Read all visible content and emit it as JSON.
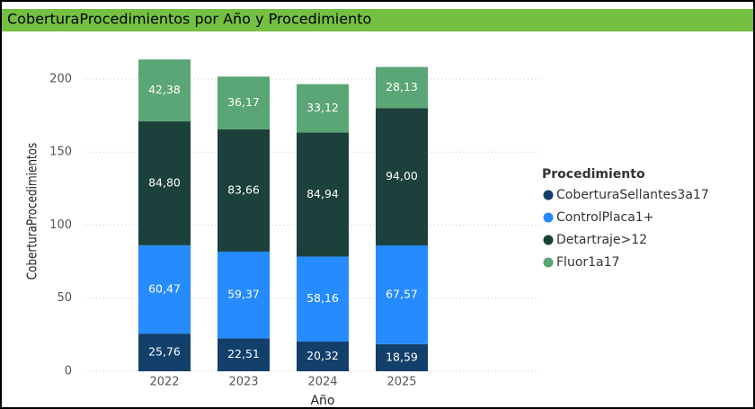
{
  "chart_data": {
    "type": "stacked_bar",
    "title": "CoberturaProcedimientos por Año y Procedimiento",
    "x_label": "Año",
    "y_label": "CoberturaProcedimientos",
    "legend_title": "Procedimiento",
    "legend_position": "right",
    "grid": true,
    "categories": [
      "2022",
      "2023",
      "2024",
      "2025"
    ],
    "series": [
      {
        "name": "CoberturaSellantes3a17",
        "color": "#12406b",
        "values": [
          25.76,
          22.51,
          20.32,
          18.59
        ],
        "value_labels": [
          "25,76",
          "22,51",
          "20,32",
          "18,59"
        ]
      },
      {
        "name": "ControlPlaca1+",
        "color": "#258bff",
        "values": [
          60.47,
          59.37,
          58.16,
          67.57
        ],
        "value_labels": [
          "60,47",
          "59,37",
          "58,16",
          "67,57"
        ]
      },
      {
        "name": "Detartraje>12",
        "color": "#1c403b",
        "values": [
          84.8,
          83.66,
          84.94,
          94.0
        ],
        "value_labels": [
          "84,80",
          "83,66",
          "84,94",
          "94,00"
        ]
      },
      {
        "name": "Fluor1a17",
        "color": "#5aa676",
        "values": [
          42.38,
          36.17,
          33.12,
          28.13
        ],
        "value_labels": [
          "42,38",
          "36,17",
          "33,12",
          "28,13"
        ]
      }
    ],
    "ylim": [
      0,
      215
    ],
    "yticks": [
      0,
      50,
      100,
      150,
      200
    ]
  }
}
